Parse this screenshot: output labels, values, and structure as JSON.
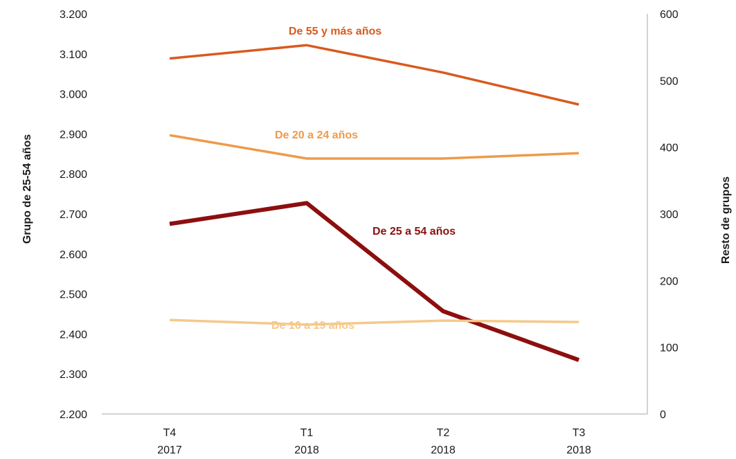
{
  "chart_data": {
    "type": "line",
    "categories": [
      {
        "top": "T4",
        "bottom": "2017"
      },
      {
        "top": "T1",
        "bottom": "2018"
      },
      {
        "top": "T2",
        "bottom": "2018"
      },
      {
        "top": "T3",
        "bottom": "2018"
      }
    ],
    "y_left": {
      "label": "Grupo de 25-54 años",
      "range": [
        2200,
        3200
      ],
      "ticks": [
        "2.200",
        "2.300",
        "2.400",
        "2.500",
        "2.600",
        "2.700",
        "2.800",
        "2.900",
        "3.000",
        "3.100",
        "3.200"
      ]
    },
    "y_right": {
      "label": "Resto de grupos",
      "range": [
        0,
        600
      ],
      "ticks": [
        "0",
        "100",
        "200",
        "300",
        "400",
        "500",
        "600"
      ]
    },
    "series": [
      {
        "name": "De 55 y más años",
        "axis": "right",
        "color": "#d95a1e",
        "values": [
          533,
          553,
          512,
          464
        ]
      },
      {
        "name": "De 20 a 24 años",
        "axis": "right",
        "color": "#ef9a4a",
        "values": [
          418,
          383,
          383,
          391
        ]
      },
      {
        "name": "De 25 a 54 años",
        "axis": "left",
        "color": "#8c0f0f",
        "values": [
          2675,
          2727,
          2457,
          2335
        ]
      },
      {
        "name": "De 16 a 19 años",
        "axis": "right",
        "color": "#f5c98a",
        "values": [
          141,
          134,
          140,
          138
        ]
      }
    ],
    "grid": false,
    "legend": "inline labels"
  }
}
